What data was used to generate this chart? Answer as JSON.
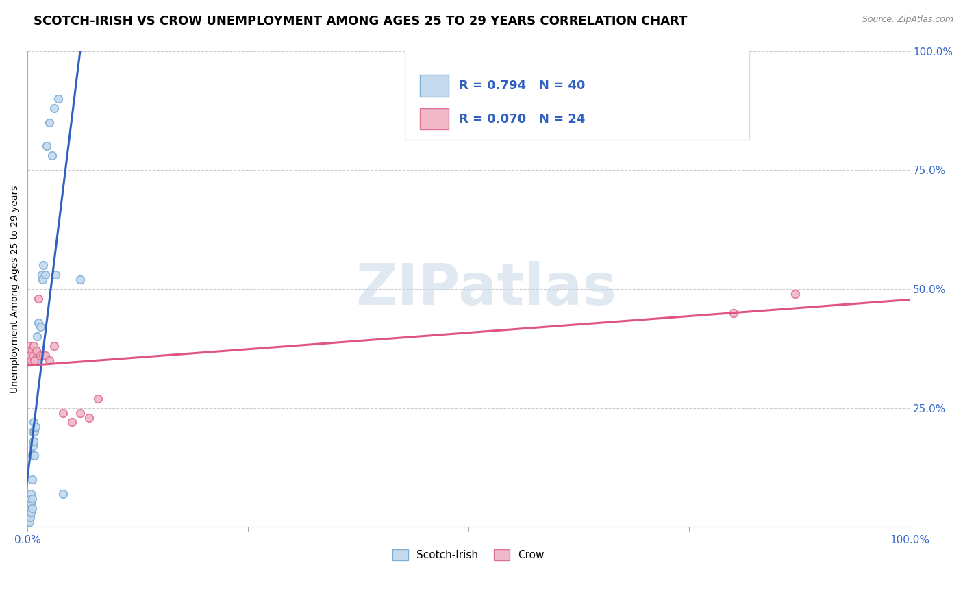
{
  "title": "SCOTCH-IRISH VS CROW UNEMPLOYMENT AMONG AGES 25 TO 29 YEARS CORRELATION CHART",
  "source": "Source: ZipAtlas.com",
  "ylabel": "Unemployment Among Ages 25 to 29 years",
  "ytick_labels": [
    "100.0%",
    "75.0%",
    "50.0%",
    "25.0%"
  ],
  "ytick_values": [
    1.0,
    0.75,
    0.5,
    0.25
  ],
  "xlim": [
    0,
    1.0
  ],
  "ylim": [
    0,
    1.0
  ],
  "watermark": "ZIPatlas",
  "scotch_irish": {
    "color": "#7bafd4",
    "color_fill": "#c5d9ef",
    "R": 0.794,
    "N": 40,
    "label": "Scotch-Irish",
    "x": [
      0.001,
      0.001,
      0.002,
      0.002,
      0.002,
      0.003,
      0.003,
      0.003,
      0.004,
      0.004,
      0.004,
      0.005,
      0.005,
      0.005,
      0.005,
      0.006,
      0.006,
      0.007,
      0.007,
      0.008,
      0.008,
      0.009,
      0.01,
      0.01,
      0.011,
      0.012,
      0.013,
      0.015,
      0.016,
      0.017,
      0.018,
      0.02,
      0.022,
      0.025,
      0.028,
      0.03,
      0.032,
      0.035,
      0.04,
      0.06
    ],
    "y": [
      0.02,
      0.03,
      0.01,
      0.04,
      0.05,
      0.02,
      0.03,
      0.06,
      0.03,
      0.05,
      0.07,
      0.04,
      0.06,
      0.1,
      0.15,
      0.17,
      0.2,
      0.18,
      0.22,
      0.15,
      0.2,
      0.21,
      0.35,
      0.37,
      0.4,
      0.43,
      0.36,
      0.42,
      0.53,
      0.52,
      0.55,
      0.53,
      0.8,
      0.85,
      0.78,
      0.88,
      0.53,
      0.9,
      0.07,
      0.52
    ]
  },
  "crow": {
    "color": "#e07090",
    "color_fill": "#f0b8c8",
    "R": 0.07,
    "N": 24,
    "label": "Crow",
    "x": [
      0.001,
      0.001,
      0.002,
      0.002,
      0.003,
      0.004,
      0.005,
      0.006,
      0.007,
      0.008,
      0.01,
      0.012,
      0.015,
      0.018,
      0.02,
      0.025,
      0.03,
      0.04,
      0.05,
      0.06,
      0.07,
      0.08,
      0.8,
      0.87
    ],
    "y": [
      0.36,
      0.38,
      0.35,
      0.37,
      0.36,
      0.35,
      0.37,
      0.36,
      0.38,
      0.35,
      0.37,
      0.48,
      0.36,
      0.36,
      0.36,
      0.35,
      0.38,
      0.24,
      0.22,
      0.24,
      0.23,
      0.27,
      0.45,
      0.49
    ]
  },
  "scotch_irish_line_color": "#3060c0",
  "crow_line_color": "#e05580",
  "legend_box_color": "white",
  "legend_border_color": "#cccccc",
  "R_color": "#3060c0",
  "N_color": "#cc3300",
  "grid_color": "#cccccc",
  "grid_style": "--",
  "background_color": "white",
  "title_fontsize": 13,
  "axis_label_fontsize": 10,
  "tick_fontsize": 11,
  "marker_size": 70
}
